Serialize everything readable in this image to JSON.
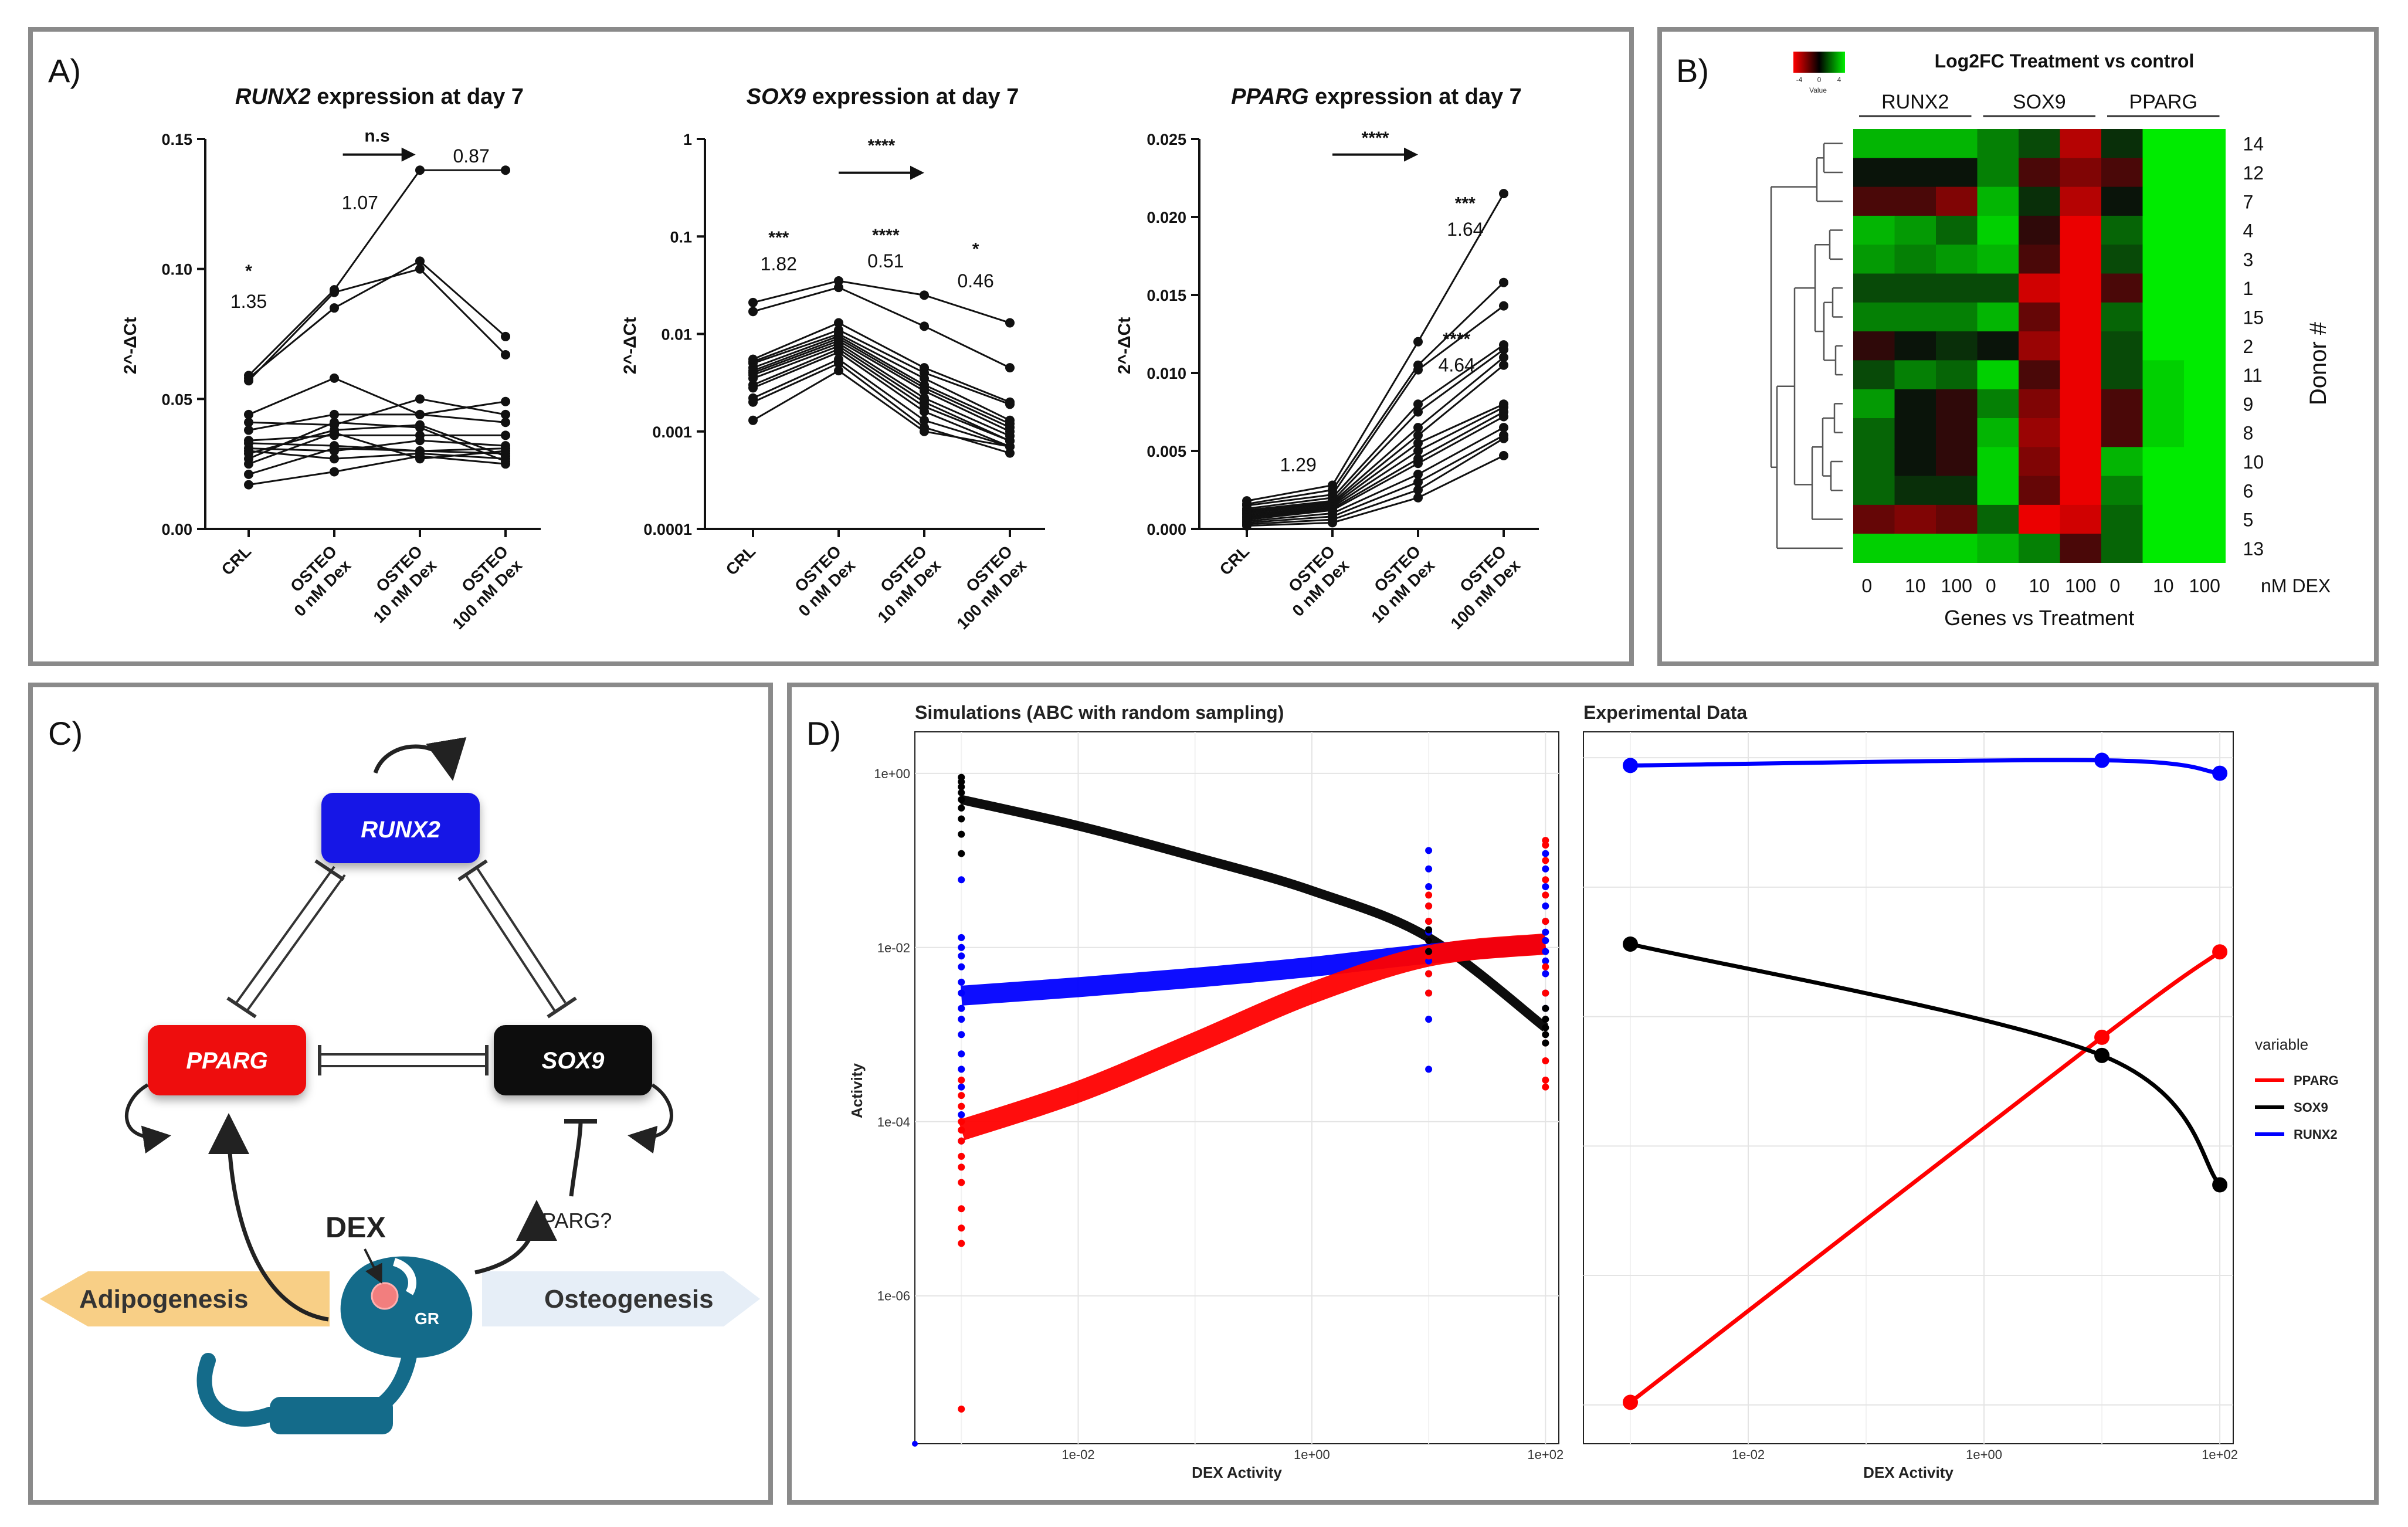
{
  "panels": {
    "a": {
      "label": "A)"
    },
    "b": {
      "label": "B)"
    },
    "c": {
      "label": "C)"
    },
    "d": {
      "label": "D)"
    }
  },
  "colors": {
    "frame": "#8a8a8a",
    "runx2": "#0000ff",
    "pparg": "#ff0000",
    "sox9": "#000000",
    "node_runx2": "#1414e6",
    "node_pparg": "#ee1111",
    "node_sox9": "#111111",
    "gr": "#146b8a",
    "adipo_arrow": "#f8cf86",
    "osteo_arrow": "#e6eef7"
  },
  "chart_data": [
    {
      "id": "runx2",
      "type": "line",
      "title_gene": "RUNX2",
      "title_rest": " expression at day 7",
      "ylabel": "2^-ΔCt",
      "ylim": [
        0,
        0.15
      ],
      "yticks": [
        0.0,
        0.05,
        0.1,
        0.15
      ],
      "ytick_labels": [
        "0.00",
        "0.05",
        "0.10",
        "0.15"
      ],
      "categories": [
        "CRL",
        "OSTEO 0 nM Dex",
        "OSTEO 10 nM Dex",
        "OSTEO 100 nM Dex"
      ],
      "cat_lines": [
        [
          "CRL"
        ],
        [
          "OSTEO",
          "0 nM Dex"
        ],
        [
          "OSTEO",
          "10 nM Dex"
        ],
        [
          "OSTEO",
          "100 nM Dex"
        ]
      ],
      "annotations": [
        {
          "text": "*",
          "cat": 0,
          "y": 0.097
        },
        {
          "text": "1.35",
          "cat": 0,
          "y": 0.085
        },
        {
          "text": "n.s",
          "cat": 1.5,
          "y": 0.149
        },
        {
          "text": "1.07",
          "cat": 1.3,
          "y": 0.123
        },
        {
          "text": "0.87",
          "cat": 2.6,
          "y": 0.141
        }
      ],
      "arrow": {
        "from": 1.1,
        "to": 1.95,
        "y": 0.144
      },
      "donors": [
        [
          0.059,
          0.092,
          0.138,
          0.138
        ],
        [
          0.058,
          0.085,
          0.103,
          0.074
        ],
        [
          0.057,
          0.091,
          0.1,
          0.067
        ],
        [
          0.044,
          0.058,
          0.044,
          0.049
        ],
        [
          0.041,
          0.04,
          0.05,
          0.044
        ],
        [
          0.038,
          0.044,
          0.044,
          0.041
        ],
        [
          0.034,
          0.036,
          0.036,
          0.036
        ],
        [
          0.033,
          0.032,
          0.03,
          0.031
        ],
        [
          0.031,
          0.03,
          0.034,
          0.032
        ],
        [
          0.029,
          0.038,
          0.04,
          0.028
        ],
        [
          0.027,
          0.041,
          0.039,
          0.026
        ],
        [
          0.025,
          0.037,
          0.027,
          0.03
        ],
        [
          0.021,
          0.031,
          0.03,
          0.029
        ],
        [
          0.017,
          0.022,
          0.028,
          0.025
        ],
        [
          0.03,
          0.027,
          0.029,
          0.027
        ]
      ]
    },
    {
      "id": "sox9",
      "type": "line",
      "scale": "log",
      "title_gene": "SOX9",
      "title_rest": " expression at day 7",
      "ylabel": "2^-ΔCt",
      "ylim": [
        0.0001,
        1
      ],
      "yticks": [
        0.0001,
        0.001,
        0.01,
        0.1,
        1
      ],
      "ytick_labels": [
        "0.0001",
        "0.001",
        "0.01",
        "0.1",
        "1"
      ],
      "categories": [
        "CRL",
        "OSTEO 0 nM Dex",
        "OSTEO 10 nM Dex",
        "OSTEO 100 nM Dex"
      ],
      "cat_lines": [
        [
          "CRL"
        ],
        [
          "OSTEO",
          "0 nM Dex"
        ],
        [
          "OSTEO",
          "10 nM Dex"
        ],
        [
          "OSTEO",
          "100 nM Dex"
        ]
      ],
      "annotations": [
        {
          "text": "***",
          "cat": 0.3,
          "y": 0.085
        },
        {
          "text": "1.82",
          "cat": 0.3,
          "y": 0.045
        },
        {
          "text": "****",
          "cat": 1.55,
          "y": 0.09
        },
        {
          "text": "0.51",
          "cat": 1.55,
          "y": 0.048
        },
        {
          "text": "*",
          "cat": 2.6,
          "y": 0.065
        },
        {
          "text": "0.46",
          "cat": 2.6,
          "y": 0.03
        },
        {
          "text": "****",
          "cat": 1.5,
          "y": 0.75
        }
      ],
      "arrow": {
        "from": 1.0,
        "to": 2.0,
        "y": 0.45
      },
      "donors": [
        [
          0.021,
          0.035,
          0.025,
          0.013
        ],
        [
          0.017,
          0.03,
          0.012,
          0.0045
        ],
        [
          0.0055,
          0.013,
          0.0045,
          0.002
        ],
        [
          0.0052,
          0.011,
          0.004,
          0.0019
        ],
        [
          0.005,
          0.01,
          0.0035,
          0.0013
        ],
        [
          0.0045,
          0.0095,
          0.003,
          0.0012
        ],
        [
          0.0042,
          0.009,
          0.0028,
          0.0011
        ],
        [
          0.004,
          0.0085,
          0.0026,
          0.001
        ],
        [
          0.0038,
          0.008,
          0.0022,
          0.0009
        ],
        [
          0.0035,
          0.0075,
          0.002,
          0.0008
        ],
        [
          0.003,
          0.007,
          0.0018,
          0.0008
        ],
        [
          0.0028,
          0.0065,
          0.0016,
          0.0007
        ],
        [
          0.0022,
          0.0055,
          0.0013,
          0.0007
        ],
        [
          0.002,
          0.005,
          0.0011,
          0.0006
        ],
        [
          0.0013,
          0.0042,
          0.001,
          0.0007
        ]
      ]
    },
    {
      "id": "pparg",
      "type": "line",
      "title_gene": "PPARG",
      "title_rest": " expression at day 7",
      "ylabel": "2^-ΔCt",
      "ylim": [
        0,
        0.025
      ],
      "yticks": [
        0.0,
        0.005,
        0.01,
        0.015,
        0.02,
        0.025
      ],
      "ytick_labels": [
        "0.000",
        "0.005",
        "0.010",
        "0.015",
        "0.020",
        "0.025"
      ],
      "categories": [
        "CRL",
        "OSTEO 0 nM Dex",
        "OSTEO 10 nM Dex",
        "OSTEO 100 nM Dex"
      ],
      "cat_lines": [
        [
          "CRL"
        ],
        [
          "OSTEO",
          "0 nM Dex"
        ],
        [
          "OSTEO",
          "10 nM Dex"
        ],
        [
          "OSTEO",
          "100 nM Dex"
        ]
      ],
      "annotations": [
        {
          "text": "****",
          "cat": 1.5,
          "y": 0.0247
        },
        {
          "text": "1.29",
          "cat": 0.6,
          "y": 0.0037
        },
        {
          "text": "****",
          "cat": 2.45,
          "y": 0.0118
        },
        {
          "text": "4.64",
          "cat": 2.45,
          "y": 0.0101
        },
        {
          "text": "***",
          "cat": 2.55,
          "y": 0.0205
        },
        {
          "text": "1.64",
          "cat": 2.55,
          "y": 0.0188
        }
      ],
      "arrow": {
        "from": 1.0,
        "to": 2.0,
        "y": 0.024
      },
      "donors": [
        [
          0.0018,
          0.0028,
          0.012,
          0.0215
        ],
        [
          0.0016,
          0.0025,
          0.0105,
          0.0158
        ],
        [
          0.0015,
          0.0022,
          0.0102,
          0.0143
        ],
        [
          0.0013,
          0.002,
          0.008,
          0.0118
        ],
        [
          0.0012,
          0.0018,
          0.0075,
          0.0115
        ],
        [
          0.0011,
          0.0017,
          0.0065,
          0.011
        ],
        [
          0.001,
          0.0016,
          0.006,
          0.0105
        ],
        [
          0.0009,
          0.0015,
          0.0055,
          0.008
        ],
        [
          0.0008,
          0.0014,
          0.005,
          0.0078
        ],
        [
          0.0007,
          0.0013,
          0.0045,
          0.0075
        ],
        [
          0.0006,
          0.0012,
          0.0042,
          0.0072
        ],
        [
          0.0005,
          0.001,
          0.0035,
          0.0065
        ],
        [
          0.0004,
          0.0008,
          0.003,
          0.006
        ],
        [
          0.0003,
          0.0006,
          0.0025,
          0.0058
        ],
        [
          0.0002,
          0.0004,
          0.002,
          0.0047
        ]
      ]
    },
    {
      "id": "heatmap",
      "type": "heatmap",
      "title": "Log2FC  Treatment vs  control",
      "key_label": "Value",
      "key_ticks": [
        "-4",
        "0",
        "4"
      ],
      "gene_groups": [
        "RUNX2",
        "SOX9",
        "PPARG"
      ],
      "columns": [
        "0",
        "10",
        "100",
        "0",
        "10",
        "100",
        "0",
        "10",
        "100"
      ],
      "col_unit": "nM DEX",
      "xlabel": "Genes vs Treatment",
      "ylabel": "Donor #",
      "rows": [
        "14",
        "12",
        "7",
        "4",
        "3",
        "1",
        "15",
        "2",
        "11",
        "9",
        "8",
        "10",
        "6",
        "5",
        "13"
      ],
      "values": [
        [
          3,
          3,
          3,
          2,
          1,
          -3,
          0.5,
          4,
          4
        ],
        [
          0,
          0,
          0,
          2,
          -1,
          -2,
          -1,
          4,
          4
        ],
        [
          -1,
          -1,
          -2,
          3,
          0.5,
          -3,
          0,
          4,
          4
        ],
        [
          3,
          2.5,
          1.5,
          3.5,
          -0.5,
          -4,
          1.5,
          4,
          4
        ],
        [
          2.5,
          2,
          2.5,
          3,
          -1,
          -4,
          1,
          4,
          4
        ],
        [
          1,
          1,
          1,
          1,
          -3.5,
          -4,
          -1,
          4,
          4
        ],
        [
          2,
          2,
          2,
          3,
          -1.5,
          -4,
          1.5,
          4,
          4
        ],
        [
          -0.5,
          0,
          0.5,
          0,
          -2.5,
          -4,
          1,
          4,
          4
        ],
        [
          1,
          2,
          1.5,
          3.5,
          -1,
          -4,
          1,
          3.5,
          4
        ],
        [
          2.5,
          0,
          -0.5,
          2,
          -2,
          -4,
          -1,
          3.5,
          4
        ],
        [
          1.5,
          0,
          -0.5,
          3,
          -2.5,
          -4,
          -1,
          3.5,
          4
        ],
        [
          1.5,
          0,
          -0.5,
          3.5,
          -2,
          -4,
          3,
          4,
          4
        ],
        [
          1.5,
          0.5,
          0.5,
          3.5,
          -1.5,
          -4,
          2,
          4,
          4
        ],
        [
          -1.5,
          -2,
          -1.5,
          1.5,
          -4,
          -3.5,
          1.5,
          4,
          4
        ],
        [
          3.5,
          3.5,
          3.5,
          3,
          2,
          -1,
          1.5,
          4,
          4
        ]
      ]
    },
    {
      "id": "simulations",
      "type": "scatter",
      "title": "Simulations (ABC with random sampling)",
      "xlabel": "DEX Activity",
      "ylabel": "Activity",
      "xscale": "log",
      "yscale": "log",
      "xlim": [
        0.0004,
        130
      ],
      "ylim": [
        2e-08,
        3
      ],
      "xticks": [
        0.01,
        1,
        100
      ],
      "xtick_labels": [
        "1e-02",
        "1e+00",
        "1e+02"
      ],
      "yticks": [
        1e-06,
        0.0001,
        0.01,
        1
      ],
      "ytick_labels": [
        "1e-06",
        "1e-04",
        "1e-02",
        "1e+00"
      ],
      "bands": [
        {
          "name": "SOX9",
          "x": [
            0.001,
            0.01,
            0.1,
            1,
            10,
            100
          ],
          "y": [
            0.5,
            0.25,
            0.11,
            0.045,
            0.013,
            0.0012
          ],
          "width": 16
        },
        {
          "name": "RUNX2",
          "x": [
            0.001,
            0.01,
            0.1,
            1,
            10,
            100
          ],
          "y": [
            0.0028,
            0.0035,
            0.0045,
            0.006,
            0.0085,
            0.011
          ],
          "width": 34
        },
        {
          "name": "PPARG",
          "x": [
            0.001,
            0.01,
            0.1,
            1,
            10,
            100
          ],
          "y": [
            8e-05,
            0.00022,
            0.0008,
            0.003,
            0.008,
            0.011
          ],
          "width": 36
        }
      ]
    },
    {
      "id": "experimental",
      "type": "line",
      "title": "Experimental Data",
      "xlabel": "DEX Activity",
      "xscale": "log",
      "xlim": [
        0.0004,
        130
      ],
      "xticks": [
        0.01,
        1,
        100
      ],
      "xtick_labels": [
        "1e-02",
        "1e+00",
        "1e+02"
      ],
      "legend_title": "variable",
      "legend_position": "right",
      "series": [
        {
          "name": "PPARG",
          "x": [
            0.001,
            10,
            100
          ],
          "y": [
            -0.99,
            0.42,
            0.75
          ]
        },
        {
          "name": "SOX9",
          "x": [
            0.001,
            10,
            100
          ],
          "y": [
            0.78,
            0.35,
            -0.15
          ]
        },
        {
          "name": "RUNX2",
          "x": [
            0.001,
            10,
            100
          ],
          "y": [
            1.47,
            1.49,
            1.44
          ]
        }
      ]
    }
  ],
  "diagram": {
    "nodes": [
      "RUNX2",
      "PPARG",
      "SOX9"
    ],
    "dex": "DEX",
    "gr": "GR",
    "pparg_question": "PPARG?",
    "adipogenesis": "Adipogenesis",
    "osteogenesis": "Osteogenesis"
  }
}
